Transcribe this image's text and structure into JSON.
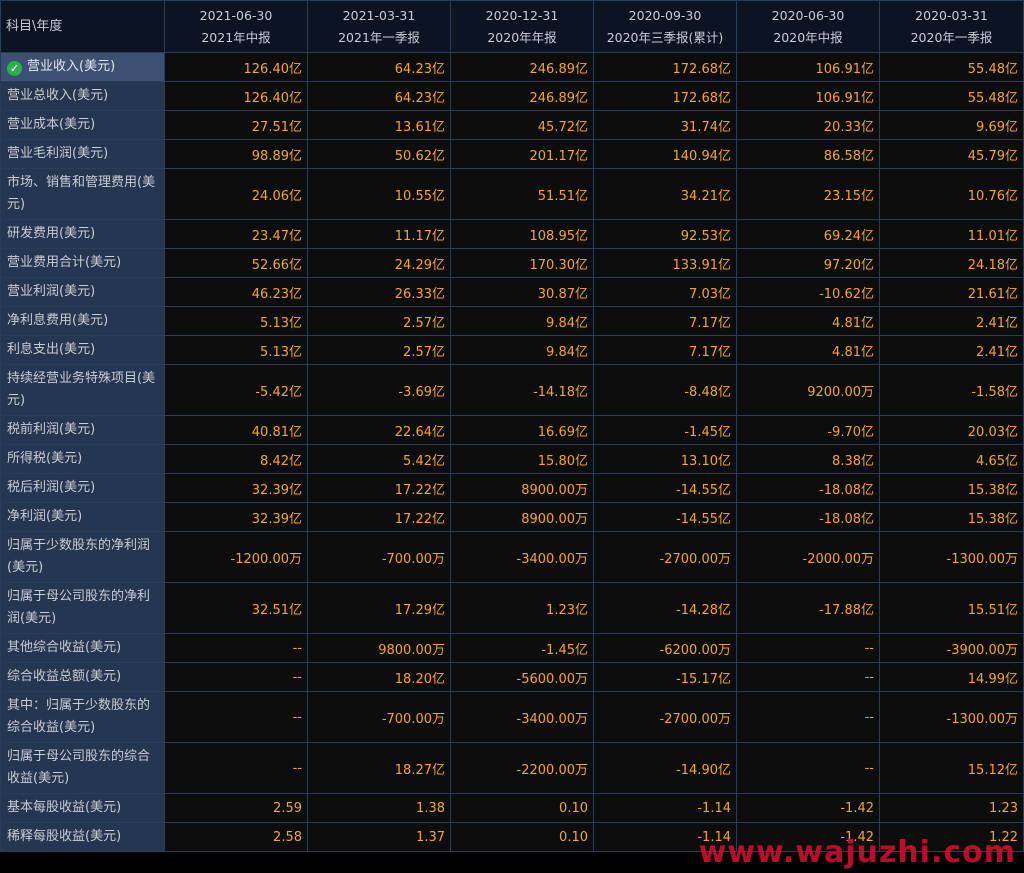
{
  "table": {
    "corner_label": "科目\\年度",
    "columns": [
      {
        "date": "2021-06-30",
        "period": "2021年中报"
      },
      {
        "date": "2021-03-31",
        "period": "2021年一季报"
      },
      {
        "date": "2020-12-31",
        "period": "2020年年报"
      },
      {
        "date": "2020-09-30",
        "period": "2020年三季报(累计)"
      },
      {
        "date": "2020-06-30",
        "period": "2020年中报"
      },
      {
        "date": "2020-03-31",
        "period": "2020年一季报"
      }
    ],
    "rows": [
      {
        "label": "营业收入(美元)",
        "values": [
          "126.40亿",
          "64.23亿",
          "246.89亿",
          "172.68亿",
          "106.91亿",
          "55.48亿"
        ],
        "selected": true
      },
      {
        "label": "营业总收入(美元)",
        "values": [
          "126.40亿",
          "64.23亿",
          "246.89亿",
          "172.68亿",
          "106.91亿",
          "55.48亿"
        ]
      },
      {
        "label": "营业成本(美元)",
        "values": [
          "27.51亿",
          "13.61亿",
          "45.72亿",
          "31.74亿",
          "20.33亿",
          "9.69亿"
        ]
      },
      {
        "label": "营业毛利润(美元)",
        "values": [
          "98.89亿",
          "50.62亿",
          "201.17亿",
          "140.94亿",
          "86.58亿",
          "45.79亿"
        ]
      },
      {
        "label": "市场、销售和管理费用(美元)",
        "values": [
          "24.06亿",
          "10.55亿",
          "51.51亿",
          "34.21亿",
          "23.15亿",
          "10.76亿"
        ],
        "tall": true
      },
      {
        "label": "研发费用(美元)",
        "values": [
          "23.47亿",
          "11.17亿",
          "108.95亿",
          "92.53亿",
          "69.24亿",
          "11.01亿"
        ]
      },
      {
        "label": "营业费用合计(美元)",
        "values": [
          "52.66亿",
          "24.29亿",
          "170.30亿",
          "133.91亿",
          "97.20亿",
          "24.18亿"
        ]
      },
      {
        "label": "营业利润(美元)",
        "values": [
          "46.23亿",
          "26.33亿",
          "30.87亿",
          "7.03亿",
          "-10.62亿",
          "21.61亿"
        ]
      },
      {
        "label": "净利息费用(美元)",
        "values": [
          "5.13亿",
          "2.57亿",
          "9.84亿",
          "7.17亿",
          "4.81亿",
          "2.41亿"
        ]
      },
      {
        "label": "利息支出(美元)",
        "values": [
          "5.13亿",
          "2.57亿",
          "9.84亿",
          "7.17亿",
          "4.81亿",
          "2.41亿"
        ]
      },
      {
        "label": "持续经营业务特殊项目(美元)",
        "values": [
          "-5.42亿",
          "-3.69亿",
          "-14.18亿",
          "-8.48亿",
          "9200.00万",
          "-1.58亿"
        ],
        "tall": true
      },
      {
        "label": "税前利润(美元)",
        "values": [
          "40.81亿",
          "22.64亿",
          "16.69亿",
          "-1.45亿",
          "-9.70亿",
          "20.03亿"
        ]
      },
      {
        "label": "所得税(美元)",
        "values": [
          "8.42亿",
          "5.42亿",
          "15.80亿",
          "13.10亿",
          "8.38亿",
          "4.65亿"
        ]
      },
      {
        "label": "税后利润(美元)",
        "values": [
          "32.39亿",
          "17.22亿",
          "8900.00万",
          "-14.55亿",
          "-18.08亿",
          "15.38亿"
        ]
      },
      {
        "label": "净利润(美元)",
        "values": [
          "32.39亿",
          "17.22亿",
          "8900.00万",
          "-14.55亿",
          "-18.08亿",
          "15.38亿"
        ]
      },
      {
        "label": "归属于少数股东的净利润(美元)",
        "values": [
          "-1200.00万",
          "-700.00万",
          "-3400.00万",
          "-2700.00万",
          "-2000.00万",
          "-1300.00万"
        ],
        "tall": true
      },
      {
        "label": "归属于母公司股东的净利润(美元)",
        "values": [
          "32.51亿",
          "17.29亿",
          "1.23亿",
          "-14.28亿",
          "-17.88亿",
          "15.51亿"
        ],
        "tall": true
      },
      {
        "label": "其他综合收益(美元)",
        "values": [
          "--",
          "9800.00万",
          "-1.45亿",
          "-6200.00万",
          "--",
          "-3900.00万"
        ]
      },
      {
        "label": "综合收益总额(美元)",
        "values": [
          "--",
          "18.20亿",
          "-5600.00万",
          "-15.17亿",
          "--",
          "14.99亿"
        ]
      },
      {
        "label": "其中：归属于少数股东的综合收益(美元)",
        "values": [
          "--",
          "-700.00万",
          "-3400.00万",
          "-2700.00万",
          "--",
          "-1300.00万"
        ],
        "tall": true
      },
      {
        "label": "归属于母公司股东的综合收益(美元)",
        "values": [
          "--",
          "18.27亿",
          "-2200.00万",
          "-14.90亿",
          "--",
          "15.12亿"
        ],
        "tall": true
      },
      {
        "label": "基本每股收益(美元)",
        "values": [
          "2.59",
          "1.38",
          "0.10",
          "-1.14",
          "-1.42",
          "1.23"
        ]
      },
      {
        "label": "稀释每股收益(美元)",
        "values": [
          "2.58",
          "1.37",
          "0.10",
          "-1.14",
          "-1.42",
          "1.22"
        ]
      }
    ]
  },
  "watermark": "www.wajuzhi.com",
  "colors": {
    "label_bg": "#253650",
    "selected_label_bg": "#3b5072",
    "value_text": "#f5a623",
    "grid_border": "#2a3c56"
  }
}
